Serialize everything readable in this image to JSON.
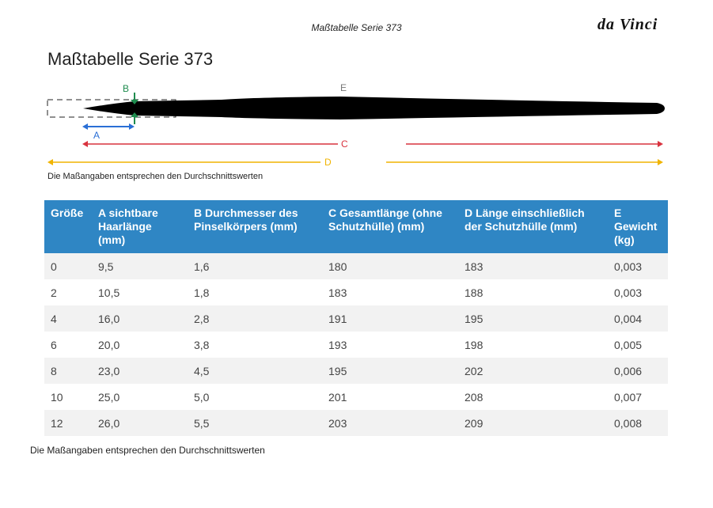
{
  "header": {
    "title": "Maßtabelle Serie 373",
    "logo": "da Vinci"
  },
  "title": "Maßtabelle Serie 373",
  "diagram": {
    "labels": {
      "b": "B",
      "e": "E",
      "a": "A",
      "c": "C",
      "d": "D"
    },
    "note": "Die Maßangaben entsprechen den Durchschnittswerten"
  },
  "table": {
    "columns": [
      "Größe",
      "A sichtbare Haarlänge (mm)",
      "B Durchmesser des Pinselkörpers (mm)",
      "C Gesamtlänge (ohne Schutzhülle) (mm)",
      "D Länge einschließlich der Schutzhülle (mm)",
      "E Gewicht (kg)"
    ],
    "rows": [
      [
        "0",
        "9,5",
        "1,6",
        "180",
        "183",
        "0,003"
      ],
      [
        "2",
        "10,5",
        "1,8",
        "183",
        "188",
        "0,003"
      ],
      [
        "4",
        "16,0",
        "2,8",
        "191",
        "195",
        "0,004"
      ],
      [
        "6",
        "20,0",
        "3,8",
        "193",
        "198",
        "0,005"
      ],
      [
        "8",
        "23,0",
        "4,5",
        "195",
        "202",
        "0,006"
      ],
      [
        "10",
        "25,0",
        "5,0",
        "201",
        "208",
        "0,007"
      ],
      [
        "12",
        "26,0",
        "5,5",
        "203",
        "209",
        "0,008"
      ]
    ]
  },
  "footer": {
    "note": "Die Maßangaben entsprechen den Durchschnittswerten"
  }
}
